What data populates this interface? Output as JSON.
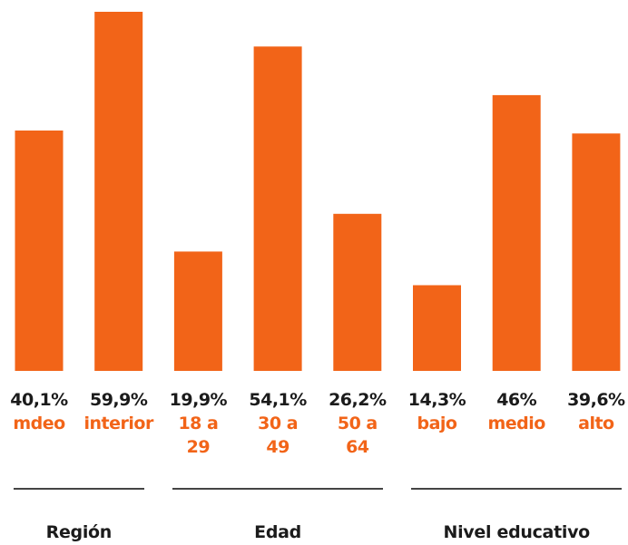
{
  "colors": {
    "bar": "#f26418",
    "value_text": "#1b1b1b",
    "category_text": "#f26418"
  },
  "chart_data": {
    "type": "bar",
    "categories": [
      "mdeo",
      "interior",
      "18 a 29",
      "30 a 49",
      "50 a 64",
      "bajo",
      "medio",
      "alto"
    ],
    "values": [
      40.1,
      59.9,
      19.9,
      54.1,
      26.2,
      14.3,
      46,
      39.6
    ],
    "value_labels": [
      "40,1%",
      "59,9%",
      "19,9%",
      "54,1%",
      "26,2%",
      "14,3%",
      "46%",
      "39,6%"
    ],
    "category_labels": [
      "mdeo",
      "interior",
      "18 a\n29",
      "30 a\n49",
      "50 a\n64",
      "bajo",
      "medio",
      "alto"
    ],
    "groups": [
      {
        "name": "Región",
        "first": 0,
        "last": 1
      },
      {
        "name": "Edad",
        "first": 2,
        "last": 4
      },
      {
        "name": "Nivel educativo",
        "first": 5,
        "last": 7
      }
    ],
    "ylim": [
      0,
      60
    ],
    "grid": false,
    "title": "",
    "xlabel": "",
    "ylabel": ""
  }
}
